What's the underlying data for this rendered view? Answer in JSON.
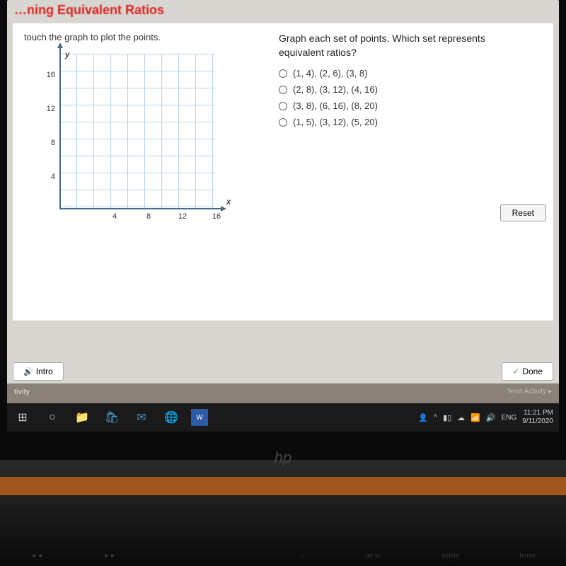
{
  "header": {
    "title": "…ning Equivalent Ratios"
  },
  "leftPanel": {
    "instruction": "touch the graph to plot the points.",
    "graph": {
      "yAxisLabel": "y",
      "xAxisLabel": "x",
      "yTicks": [
        {
          "value": "16",
          "pos": 30
        },
        {
          "value": "12",
          "pos": 78
        },
        {
          "value": "8",
          "pos": 126
        },
        {
          "value": "4",
          "pos": 174
        }
      ],
      "xTicks": [
        {
          "value": "4",
          "pos": 78
        },
        {
          "value": "8",
          "pos": 126
        },
        {
          "value": "12",
          "pos": 174
        },
        {
          "value": "16",
          "pos": 222
        }
      ],
      "gridStep": 24,
      "gridColor": "#b8d4e8",
      "axisColor": "#4a6a8a"
    },
    "resetLabel": "Reset"
  },
  "rightPanel": {
    "question": "Graph each set of points. Which set represents equivalent ratios?",
    "options": [
      "(1, 4), (2, 6), (3, 8)",
      "(2, 8), (3, 12), (4, 16)",
      "(3, 8), (6, 16), (8, 20)",
      "(1, 5), (3, 12), (5, 20)"
    ]
  },
  "bottomButtons": {
    "intro": "Intro",
    "done": "Done"
  },
  "activityBar": {
    "left": "tivity",
    "right": "Next Activity  ▸"
  },
  "taskbar": {
    "lang": "ENG",
    "time": "11:21 PM",
    "date": "9/11/2020"
  },
  "logo": "hp"
}
